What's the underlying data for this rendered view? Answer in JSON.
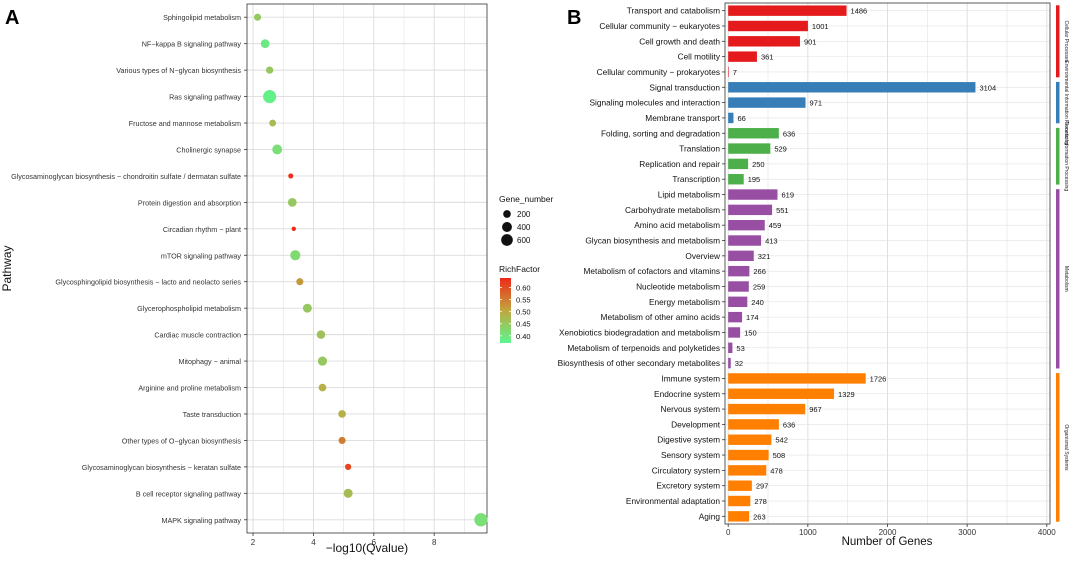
{
  "panel_a_label": "A",
  "panel_b_label": "B",
  "chart_data": [
    {
      "type": "scatter",
      "title": "",
      "xlabel": "−log10(Qvalue)",
      "ylabel": "Pathway",
      "xlim": [
        1.8,
        9.75
      ],
      "xticks": [
        2,
        4,
        6,
        8
      ],
      "grid": true,
      "size_legend_title": "Gene_number",
      "size_legend_values": [
        200,
        400,
        600
      ],
      "color_legend_title": "RichFactor",
      "color_legend_ticks": [
        0.4,
        0.45,
        0.5,
        0.55,
        0.6
      ],
      "color_legend_tick_labels": [
        "0.40",
        "0.45",
        "0.50",
        "0.55",
        "0.60"
      ],
      "color_range": [
        0.37,
        0.64
      ],
      "color_low": "#5cf68f",
      "color_mid": "#c0a73f",
      "color_high": "#ef2818",
      "points": [
        {
          "pathway": "Sphingolipid metabolism",
          "x": 2.15,
          "gene_number": 120,
          "rich_factor": 0.45
        },
        {
          "pathway": "NF−kappa B signaling pathway",
          "x": 2.4,
          "gene_number": 220,
          "rich_factor": 0.39
        },
        {
          "pathway": "Various types of N−glycan biosynthesis",
          "x": 2.55,
          "gene_number": 130,
          "rich_factor": 0.45
        },
        {
          "pathway": "Ras signaling pathway",
          "x": 2.55,
          "gene_number": 620,
          "rich_factor": 0.38
        },
        {
          "pathway": "Fructose and mannose metabolism",
          "x": 2.65,
          "gene_number": 110,
          "rich_factor": 0.47
        },
        {
          "pathway": "Cholinergic synapse",
          "x": 2.8,
          "gene_number": 300,
          "rich_factor": 0.41
        },
        {
          "pathway": "Glycosaminoglycan biosynthesis − chondroitin sulfate / dermatan sulfate",
          "x": 3.25,
          "gene_number": 40,
          "rich_factor": 0.63
        },
        {
          "pathway": "Protein digestion and absorption",
          "x": 3.3,
          "gene_number": 220,
          "rich_factor": 0.45
        },
        {
          "pathway": "Circadian rhythm − plant",
          "x": 3.35,
          "gene_number": 20,
          "rich_factor": 0.64
        },
        {
          "pathway": "mTOR signaling pathway",
          "x": 3.4,
          "gene_number": 330,
          "rich_factor": 0.42
        },
        {
          "pathway": "Glycosphingolipid biosynthesis − lacto and neolacto series",
          "x": 3.55,
          "gene_number": 120,
          "rich_factor": 0.52
        },
        {
          "pathway": "Glycerophospholipid metabolism",
          "x": 3.8,
          "gene_number": 230,
          "rich_factor": 0.45
        },
        {
          "pathway": "Cardiac muscle contraction",
          "x": 4.25,
          "gene_number": 200,
          "rich_factor": 0.46
        },
        {
          "pathway": "Mitophagy − animal",
          "x": 4.3,
          "gene_number": 250,
          "rich_factor": 0.45
        },
        {
          "pathway": "Arginine and proline metabolism",
          "x": 4.3,
          "gene_number": 150,
          "rich_factor": 0.49
        },
        {
          "pathway": "Taste transduction",
          "x": 4.95,
          "gene_number": 150,
          "rich_factor": 0.49
        },
        {
          "pathway": "Other types of O−glycan biosynthesis",
          "x": 4.95,
          "gene_number": 120,
          "rich_factor": 0.55
        },
        {
          "pathway": "Glycosaminoglycan biosynthesis − keratan sulfate",
          "x": 5.15,
          "gene_number": 80,
          "rich_factor": 0.61
        },
        {
          "pathway": "B cell receptor signaling pathway",
          "x": 5.15,
          "gene_number": 240,
          "rich_factor": 0.47
        },
        {
          "pathway": "MAPK signaling pathway",
          "x": 9.55,
          "gene_number": 640,
          "rich_factor": 0.41
        }
      ]
    },
    {
      "type": "bar",
      "orientation": "horizontal",
      "title": "",
      "xlabel": "Number of Genes",
      "ylabel": "",
      "xlim": [
        -40,
        4040
      ],
      "xticks": [
        0,
        1000,
        2000,
        3000,
        4000
      ],
      "grid": true,
      "categories": [
        {
          "name": "Cellular Processes",
          "color": "#e41a1c"
        },
        {
          "name": "Environmental Information Processing",
          "color": "#377eb8"
        },
        {
          "name": "Genetic Information Processing",
          "color": "#4daf4a"
        },
        {
          "name": "Metabolism",
          "color": "#984ea3"
        },
        {
          "name": "Organismal Systems",
          "color": "#ff7f00"
        }
      ],
      "bars": [
        {
          "label": "Transport and catabolism",
          "value": 1486,
          "group": 0
        },
        {
          "label": "Cellular community − eukaryotes",
          "value": 1001,
          "group": 0
        },
        {
          "label": "Cell growth and death",
          "value": 901,
          "group": 0
        },
        {
          "label": "Cell motility",
          "value": 361,
          "group": 0
        },
        {
          "label": "Cellular community − prokaryotes",
          "value": 7,
          "group": 0
        },
        {
          "label": "Signal transduction",
          "value": 3104,
          "group": 1
        },
        {
          "label": "Signaling molecules and interaction",
          "value": 971,
          "group": 1
        },
        {
          "label": "Membrane transport",
          "value": 66,
          "group": 1
        },
        {
          "label": "Folding, sorting and degradation",
          "value": 636,
          "group": 2
        },
        {
          "label": "Translation",
          "value": 529,
          "group": 2
        },
        {
          "label": "Replication and repair",
          "value": 250,
          "group": 2
        },
        {
          "label": "Transcription",
          "value": 195,
          "group": 2
        },
        {
          "label": "Lipid metabolism",
          "value": 619,
          "group": 3
        },
        {
          "label": "Carbohydrate metabolism",
          "value": 551,
          "group": 3
        },
        {
          "label": "Amino acid metabolism",
          "value": 459,
          "group": 3
        },
        {
          "label": "Glycan biosynthesis and metabolism",
          "value": 413,
          "group": 3
        },
        {
          "label": "Overview",
          "value": 321,
          "group": 3
        },
        {
          "label": "Metabolism of cofactors and vitamins",
          "value": 266,
          "group": 3
        },
        {
          "label": "Nucleotide metabolism",
          "value": 259,
          "group": 3
        },
        {
          "label": "Energy metabolism",
          "value": 240,
          "group": 3
        },
        {
          "label": "Metabolism of other amino acids",
          "value": 174,
          "group": 3
        },
        {
          "label": "Xenobiotics biodegradation and metabolism",
          "value": 150,
          "group": 3
        },
        {
          "label": "Metabolism of terpenoids and polyketides",
          "value": 53,
          "group": 3
        },
        {
          "label": "Biosynthesis of other secondary metabolites",
          "value": 32,
          "group": 3
        },
        {
          "label": "Immune system",
          "value": 1726,
          "group": 4
        },
        {
          "label": "Endocrine system",
          "value": 1329,
          "group": 4
        },
        {
          "label": "Nervous system",
          "value": 967,
          "group": 4
        },
        {
          "label": "Development",
          "value": 636,
          "group": 4
        },
        {
          "label": "Digestive system",
          "value": 542,
          "group": 4
        },
        {
          "label": "Sensory system",
          "value": 508,
          "group": 4
        },
        {
          "label": "Circulatory system",
          "value": 478,
          "group": 4
        },
        {
          "label": "Excretory system",
          "value": 297,
          "group": 4
        },
        {
          "label": "Environmental adaptation",
          "value": 278,
          "group": 4
        },
        {
          "label": "Aging",
          "value": 263,
          "group": 4
        }
      ]
    }
  ]
}
